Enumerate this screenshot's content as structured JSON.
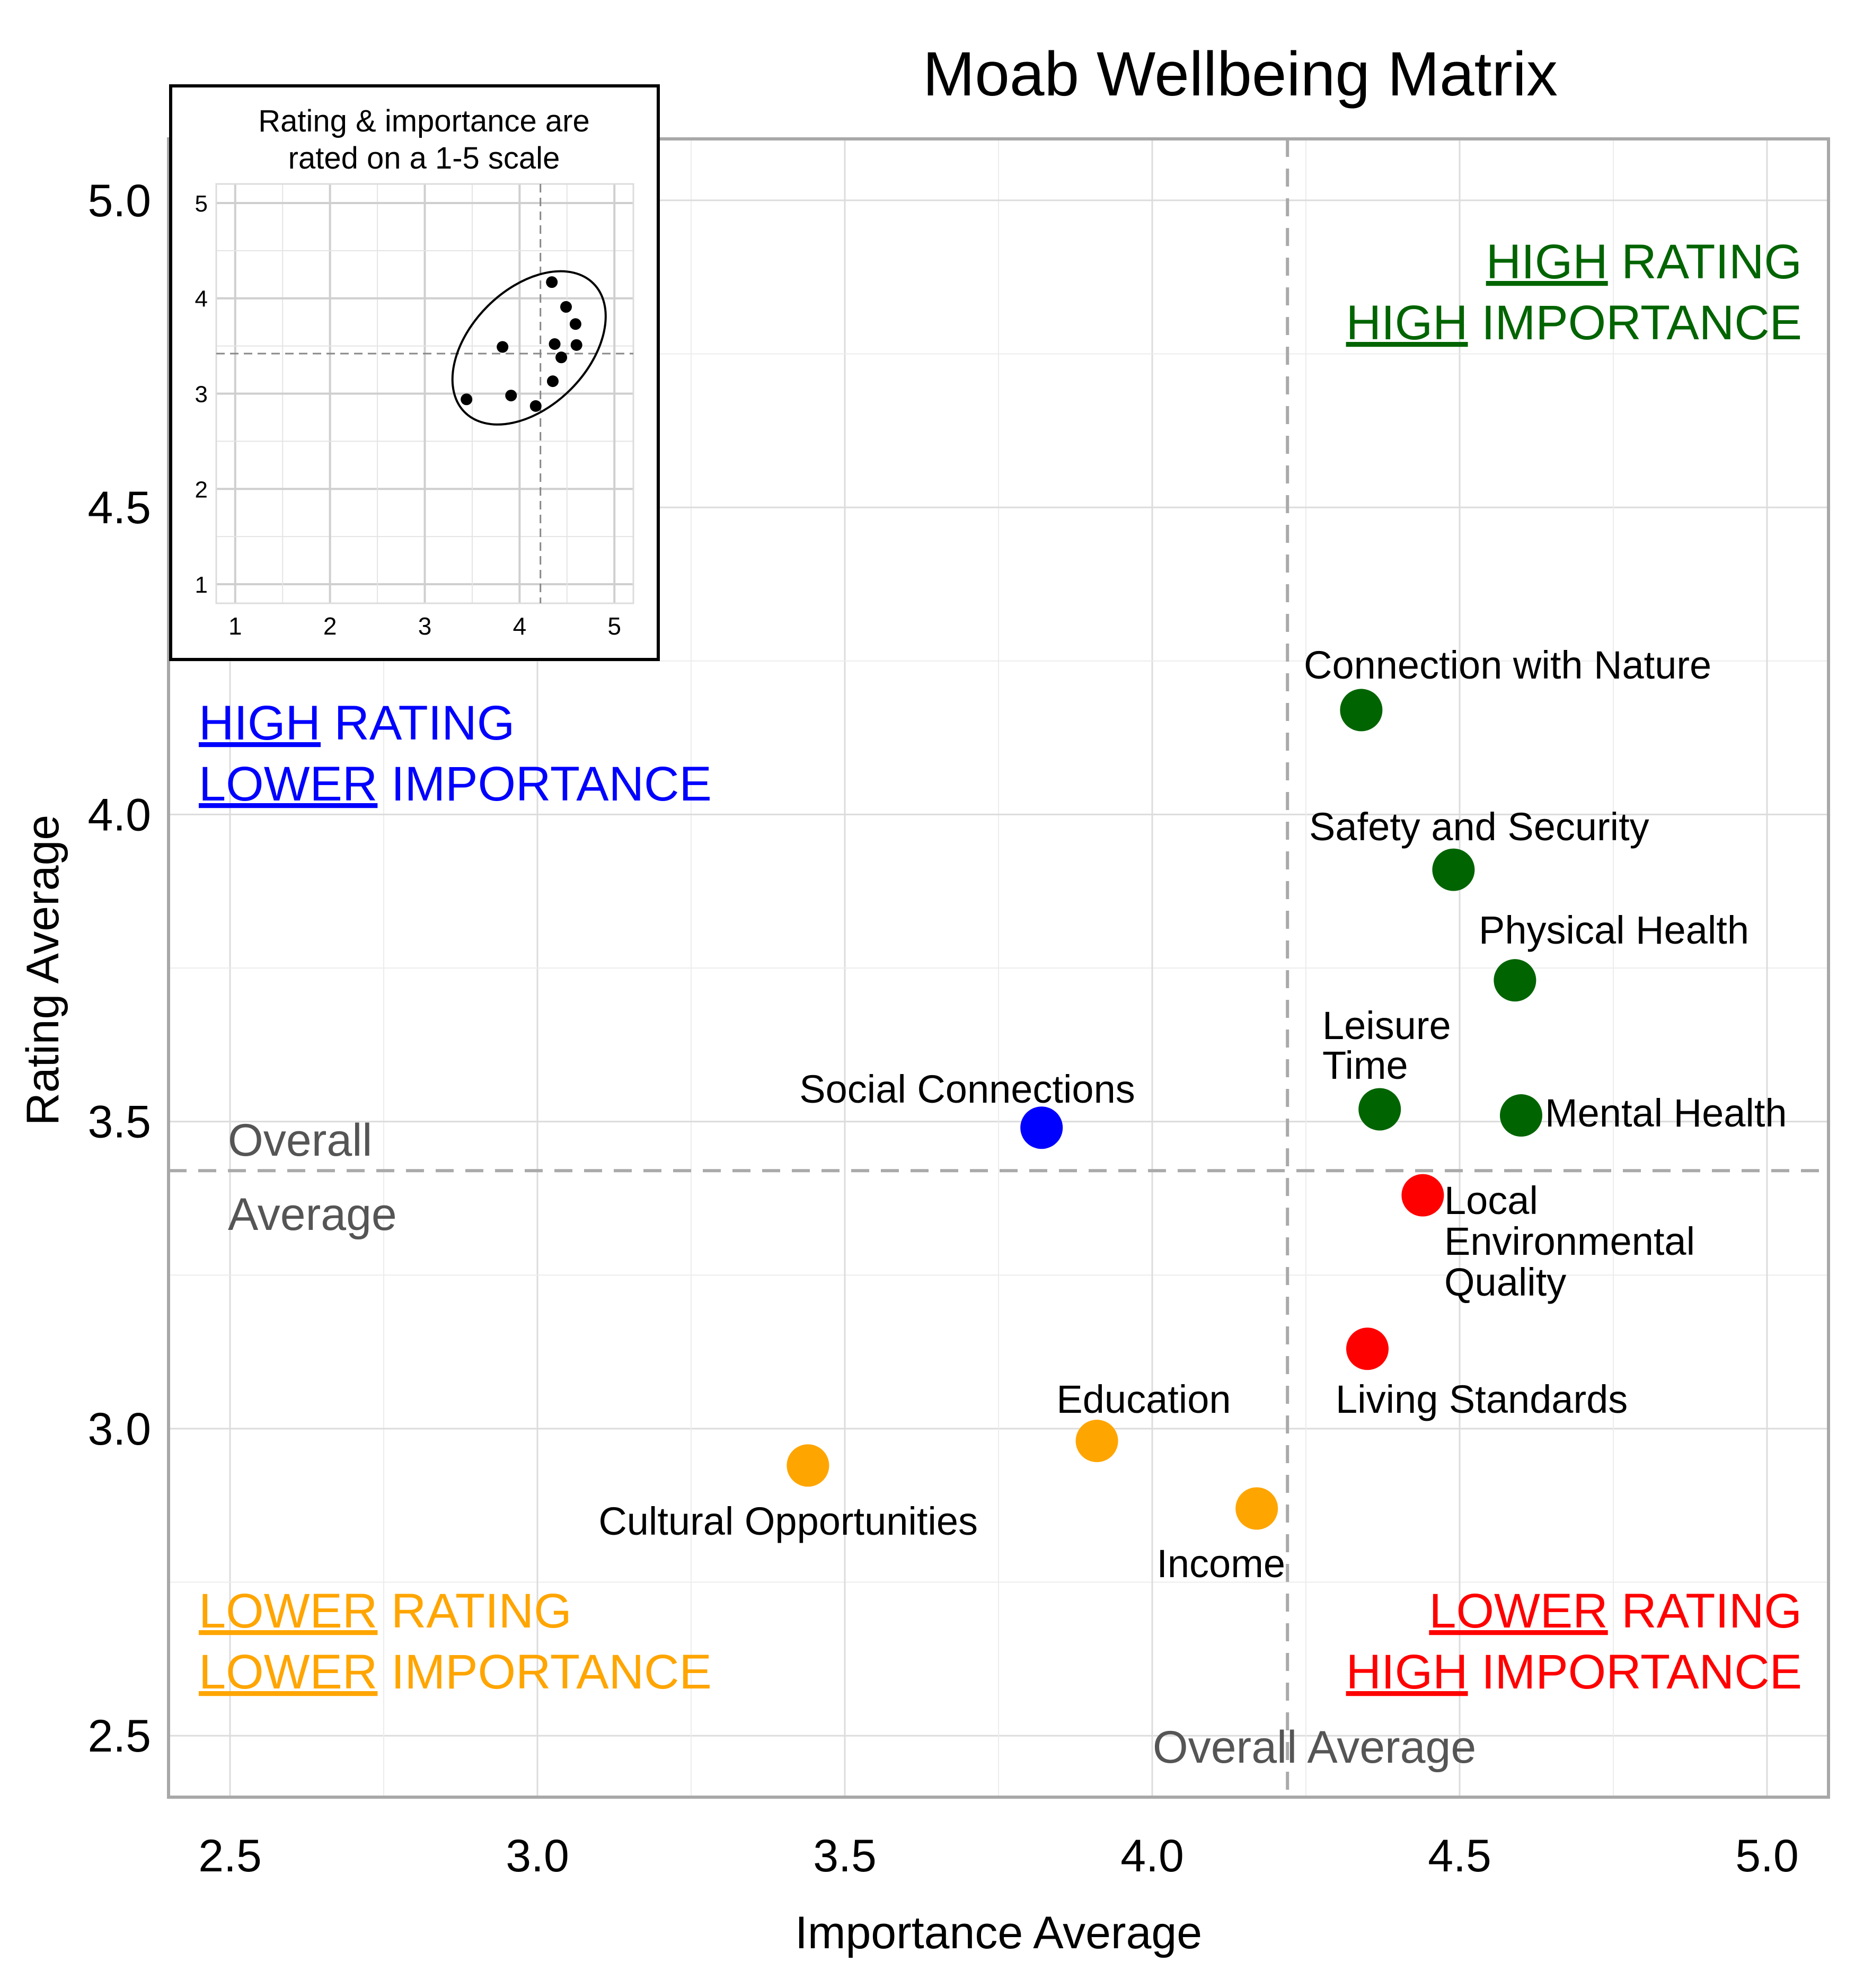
{
  "chart_data": [
    {
      "type": "scatter",
      "title": "Moab Wellbeing Matrix",
      "xlabel": "Importance Average",
      "ylabel": "Rating Average",
      "xlim": [
        2.4,
        5.1
      ],
      "ylim": [
        2.4,
        5.1
      ],
      "x_ticks": [
        "2.5",
        "3.0",
        "3.5",
        "4.0",
        "4.5",
        "5.0"
      ],
      "y_ticks": [
        "2.5",
        "3.0",
        "3.5",
        "4.0",
        "4.5",
        "5.0"
      ],
      "grid": true,
      "reference_lines": {
        "x": 4.22,
        "y": 3.42,
        "x_label": "Overall Average",
        "y_label_line1": "Overall",
        "y_label_line2": "Average"
      },
      "colors": {
        "high_high": "#006400",
        "high_low": "#0000ff",
        "low_low": "#ffa500",
        "low_high": "#ff0000",
        "reference": "#aaaaaa",
        "reference_text": "#555555"
      },
      "points": [
        {
          "label": "Connection with Nature",
          "x": 4.34,
          "y": 4.17,
          "group": "high_high"
        },
        {
          "label": "Safety and Security",
          "x": 4.49,
          "y": 3.91,
          "group": "high_high"
        },
        {
          "label": "Physical Health",
          "x": 4.59,
          "y": 3.73,
          "group": "high_high"
        },
        {
          "label": "Leisure Time",
          "x": 4.37,
          "y": 3.52,
          "group": "high_high"
        },
        {
          "label": "Mental Health",
          "x": 4.6,
          "y": 3.51,
          "group": "high_high"
        },
        {
          "label": "Social Connections",
          "x": 3.82,
          "y": 3.49,
          "group": "high_low"
        },
        {
          "label": "Local Environmental Quality",
          "x": 4.44,
          "y": 3.38,
          "group": "low_high"
        },
        {
          "label": "Living Standards",
          "x": 4.35,
          "y": 3.13,
          "group": "low_high"
        },
        {
          "label": "Education",
          "x": 3.91,
          "y": 2.98,
          "group": "low_low"
        },
        {
          "label": "Cultural Opportunities",
          "x": 3.44,
          "y": 2.94,
          "group": "low_low"
        },
        {
          "label": "Income",
          "x": 4.17,
          "y": 2.87,
          "group": "low_low"
        }
      ],
      "quadrant_labels": {
        "high_high": {
          "line1_u": "HIGH",
          "line1_rest": " RATING",
          "line2_u": "HIGH",
          "line2_rest": " IMPORTANCE"
        },
        "high_low": {
          "line1_u": "HIGH",
          "line1_rest": " RATING",
          "line2_u": "LOWER",
          "line2_rest": " IMPORTANCE"
        },
        "low_low": {
          "line1_u": "LOWER",
          "line1_rest": " RATING",
          "line2_u": "LOWER",
          "line2_rest": " IMPORTANCE"
        },
        "low_high": {
          "line1_u": "LOWER",
          "line1_rest": " RATING",
          "line2_u": "HIGH",
          "line2_rest": " IMPORTANCE"
        }
      }
    },
    {
      "type": "scatter",
      "title": "Rating & importance are rated on a 1-5 scale",
      "title_line1": "Rating & importance are",
      "title_line2": "rated on a 1-5 scale",
      "xlim": [
        0.8,
        5.2
      ],
      "ylim": [
        0.8,
        5.2
      ],
      "x_ticks": [
        "1",
        "2",
        "3",
        "4",
        "5"
      ],
      "y_ticks": [
        "1",
        "2",
        "3",
        "4",
        "5"
      ],
      "reference_lines": {
        "x": 4.22,
        "y": 3.42
      },
      "points": [
        {
          "x": 4.34,
          "y": 4.17
        },
        {
          "x": 4.49,
          "y": 3.91
        },
        {
          "x": 4.59,
          "y": 3.73
        },
        {
          "x": 3.82,
          "y": 3.49
        },
        {
          "x": 4.37,
          "y": 3.52
        },
        {
          "x": 4.6,
          "y": 3.51
        },
        {
          "x": 4.44,
          "y": 3.38
        },
        {
          "x": 4.35,
          "y": 3.13
        },
        {
          "x": 3.91,
          "y": 2.98
        },
        {
          "x": 3.44,
          "y": 2.94
        },
        {
          "x": 4.17,
          "y": 2.87
        }
      ],
      "ellipse": {
        "cx": 4.1,
        "cy": 3.48,
        "rx": 0.96,
        "ry": 0.62,
        "angle_deg": 45
      }
    }
  ]
}
